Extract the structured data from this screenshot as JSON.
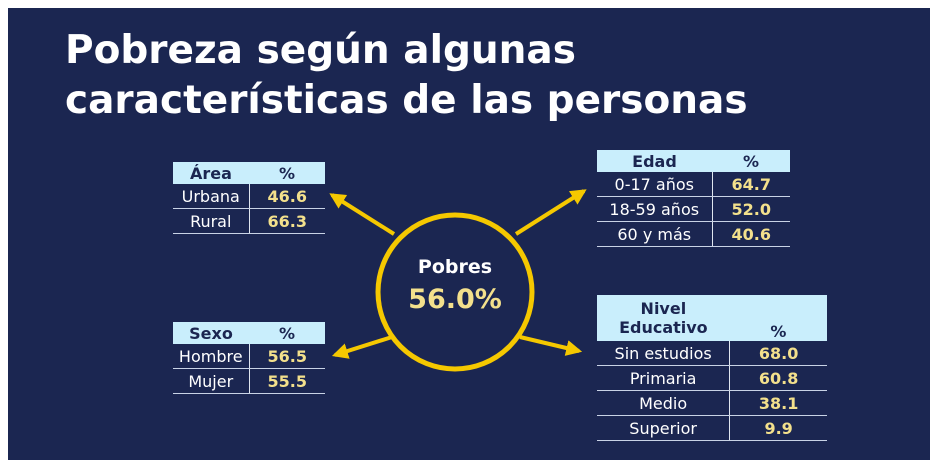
{
  "title_lines": [
    "Pobreza según algunas",
    "características de las personas"
  ],
  "center": {
    "label": "Pobres",
    "value": "56.0%"
  },
  "tables": [
    {
      "headers": [
        "Área",
        "%"
      ],
      "rows": [
        [
          "Urbana",
          "46.6"
        ],
        [
          "Rural",
          "66.3"
        ]
      ]
    },
    {
      "headers": [
        "Edad",
        "%"
      ],
      "rows": [
        [
          "0-17 años",
          "64.7"
        ],
        [
          "18-59 años",
          "52.0"
        ],
        [
          "60 y más",
          "40.6"
        ]
      ]
    },
    {
      "headers": [
        "Sexo",
        "%"
      ],
      "rows": [
        [
          "Hombre",
          "56.5"
        ],
        [
          "Mujer",
          "55.5"
        ]
      ]
    },
    {
      "headers": [
        "Nivel Educativo",
        "%"
      ],
      "rows": [
        [
          "Sin estudios",
          "68.0"
        ],
        [
          "Primaria",
          "60.8"
        ],
        [
          "Medio",
          "38.1"
        ],
        [
          "Superior",
          "9.9"
        ]
      ]
    }
  ]
}
